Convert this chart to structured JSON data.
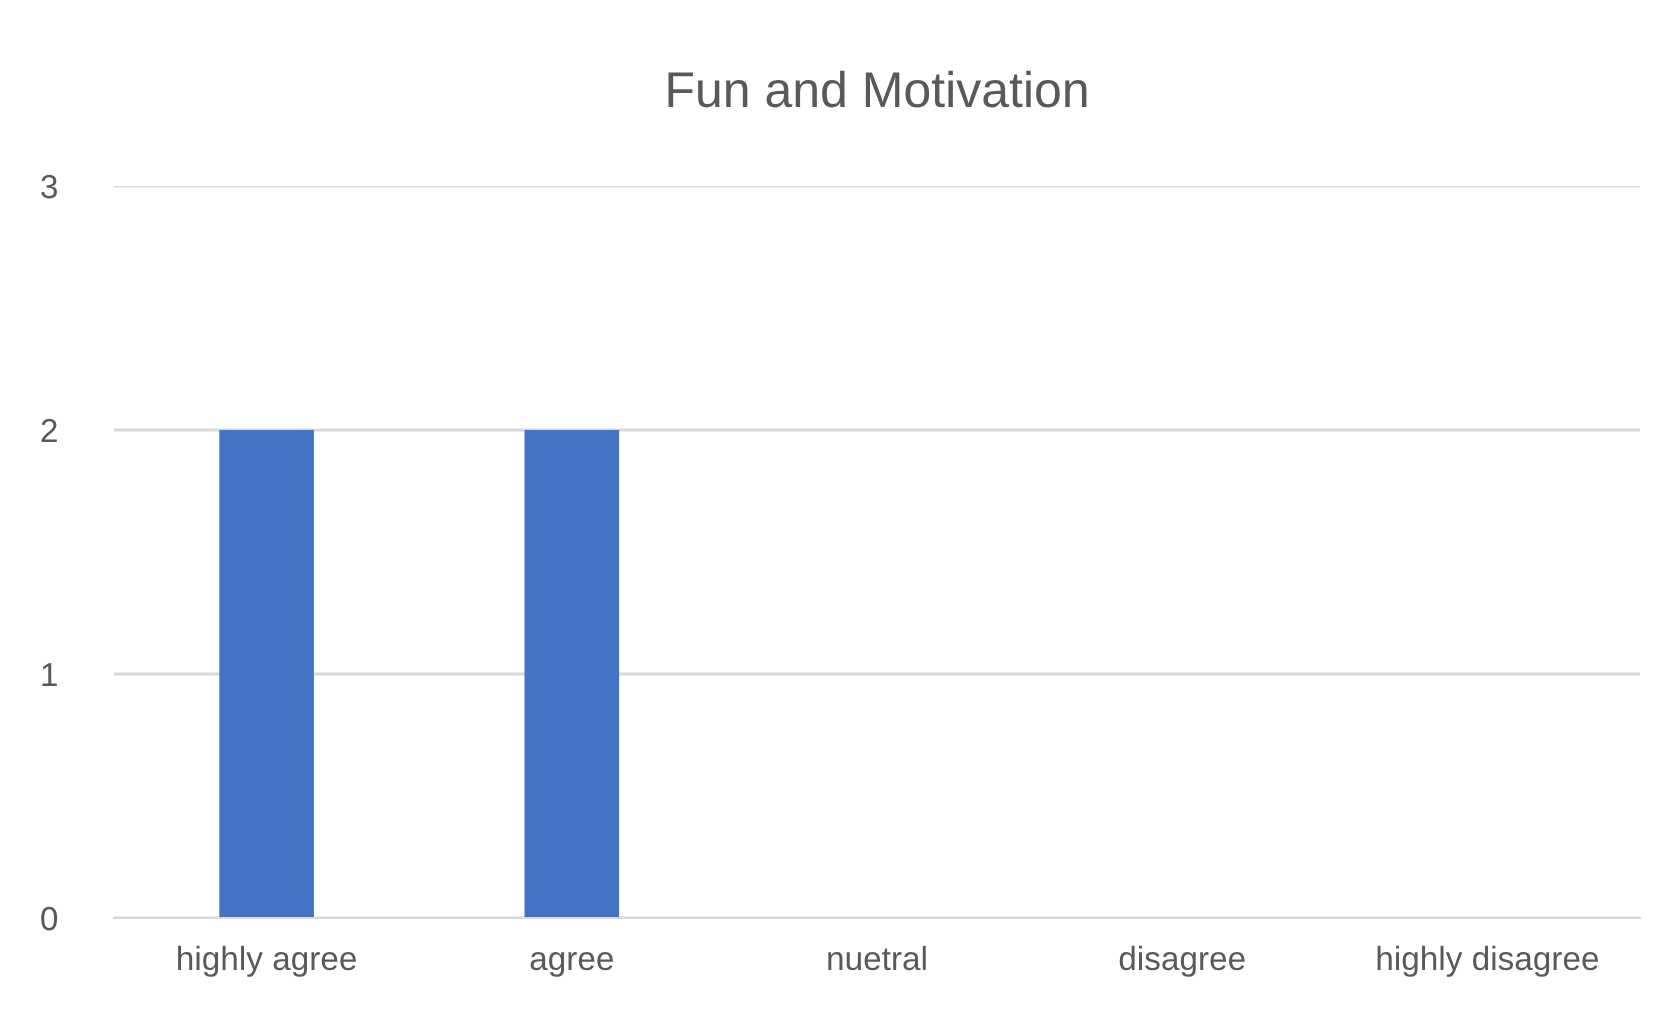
{
  "chart_data": {
    "type": "bar",
    "title": "Fun and Motivation",
    "categories": [
      "highly agree",
      "agree",
      "nuetral",
      "disagree",
      "highly disagree"
    ],
    "values": [
      2,
      2,
      0,
      0,
      0
    ],
    "color": "#4472c4",
    "ylim": [
      0,
      3
    ],
    "yticks": [
      0,
      1,
      2,
      3
    ],
    "grid": "y"
  }
}
